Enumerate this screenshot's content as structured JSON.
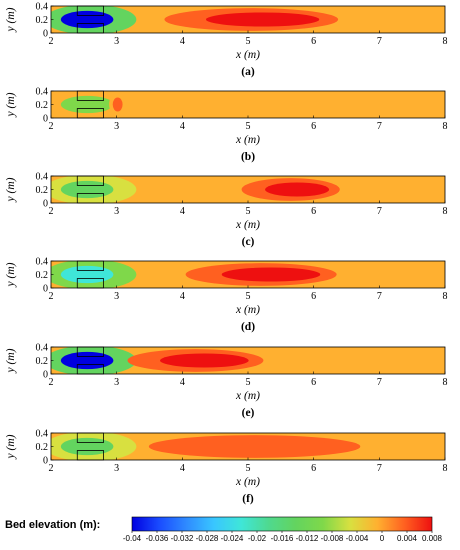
{
  "chart_data": {
    "type": "heatmap",
    "colormap": [
      "#0000e0",
      "#1a4cff",
      "#2f8bff",
      "#39c6ff",
      "#3fe6d8",
      "#4fd98f",
      "#63d45f",
      "#7fd84a",
      "#d8e040",
      "#ffb030",
      "#ff6020",
      "#ee1010"
    ],
    "xlabel": "x (m)",
    "ylabel": "y (m)",
    "xlim": [
      2,
      8
    ],
    "ylim": [
      0,
      0.4
    ],
    "xticks": [
      "2",
      "3",
      "4",
      "5",
      "6",
      "7",
      "8"
    ],
    "yticks": [
      "0",
      "0.2",
      "0.4"
    ],
    "colorbar": {
      "title": "Bed elevation (m):",
      "range": [
        -0.04,
        0.008
      ],
      "ticks": [
        "-0.04",
        "-0.036",
        "-0.032",
        "-0.028",
        "-0.024",
        "-0.02",
        "-0.016",
        "-0.012",
        "-0.008",
        "-0.004",
        "0",
        "0.004",
        "0.008"
      ]
    },
    "panels": [
      {
        "label": "(a)",
        "scour_min": -0.04,
        "deposit_max": 0.008,
        "deposit_x": [
          3.9,
          6.2
        ]
      },
      {
        "label": "(b)",
        "scour_min": -0.008,
        "deposit_max": 0.003,
        "deposit_x": [
          2.9,
          3.1
        ]
      },
      {
        "label": "(c)",
        "scour_min": -0.016,
        "deposit_max": 0.008,
        "deposit_x": [
          5.0,
          6.3
        ]
      },
      {
        "label": "(d)",
        "scour_min": -0.024,
        "deposit_max": 0.008,
        "deposit_x": [
          4.2,
          6.2
        ]
      },
      {
        "label": "(e)",
        "scour_min": -0.04,
        "deposit_max": 0.008,
        "deposit_x": [
          3.3,
          5.1
        ]
      },
      {
        "label": "(f)",
        "scour_min": -0.012,
        "deposit_max": 0.004,
        "deposit_x": [
          3.7,
          6.5
        ]
      }
    ]
  }
}
